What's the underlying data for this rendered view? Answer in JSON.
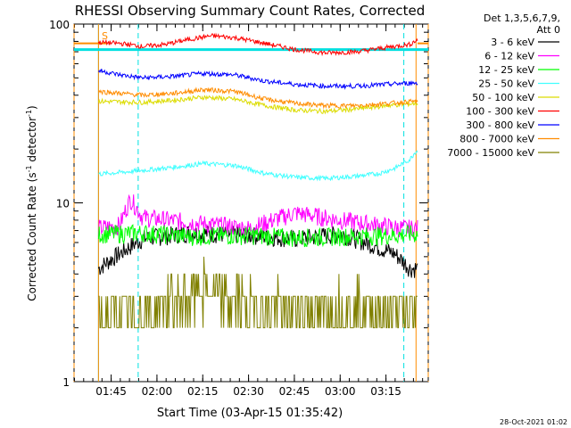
{
  "chart_data": {
    "type": "line",
    "title": "RHESSI Observing Summary Count Rates, Corrected",
    "xlabel": "Start Time (03-Apr-15 01:35:42)",
    "ylabel": "Corrected Count Rate (s",
    "ylabel_sup1": "-1",
    "ylabel_mid": " detector",
    "ylabel_sup2": "-1",
    "ylabel_end": ")",
    "yscale": "log",
    "ylim": [
      1,
      100
    ],
    "ytick_labels": [
      "1",
      "10",
      "100"
    ],
    "xlim_minutes": [
      -15,
      217
    ],
    "xtick_labels": [
      "01:45",
      "02:00",
      "02:15",
      "02:30",
      "02:45",
      "03:00",
      "03:15"
    ],
    "legend_header": [
      "Det 1,3,5,6,7,9,",
      "Att 0"
    ],
    "legend_position": "right",
    "saa_marker": "S",
    "footer_date": "28-Oct-2021 01:02",
    "data_window_minutes": [
      1,
      210
    ],
    "markers": [
      {
        "color": "#ff8c00",
        "x": -15,
        "style": "dashed"
      },
      {
        "color": "#00e0e0",
        "x": 27,
        "style": "dashed"
      },
      {
        "color": "#00e0e0",
        "x": 201,
        "style": "dashed"
      },
      {
        "color": "#ff8c00",
        "x": 209,
        "style": "solid"
      },
      {
        "color": "#00e0e0",
        "x": 1,
        "style": "solid"
      },
      {
        "color": "#ff8c00",
        "x": 1,
        "style": "solid"
      },
      {
        "color": "#ff8c00",
        "x": 217,
        "style": "dashed"
      }
    ],
    "series": [
      {
        "name": "3 - 6 keV",
        "color": "#000000",
        "x": [
          1,
          15,
          30,
          60,
          100,
          130,
          160,
          195,
          205
        ],
        "values": [
          4.3,
          5.2,
          6.3,
          6.8,
          6.6,
          6.3,
          6.7,
          5.2,
          4.3
        ]
      },
      {
        "name": "6 - 12 keV",
        "color": "#ff00ff",
        "x": [
          1,
          15,
          22,
          30,
          60,
          100,
          130,
          160,
          195,
          205
        ],
        "values": [
          7.2,
          7.5,
          10.5,
          8.3,
          7.8,
          7.2,
          8.8,
          8.0,
          7.3,
          7.2
        ]
      },
      {
        "name": "12 - 25 keV",
        "color": "#00ff00",
        "x": [
          1,
          30,
          60,
          100,
          130,
          160,
          195,
          205
        ],
        "values": [
          6.7,
          6.8,
          6.5,
          6.6,
          6.4,
          6.5,
          6.6,
          6.7
        ]
      },
      {
        "name": "25 - 50 keV",
        "color": "#40ffff",
        "x": [
          1,
          15,
          30,
          50,
          70,
          90,
          110,
          130,
          150,
          170,
          185,
          195,
          205,
          209
        ],
        "values": [
          14.5,
          14.8,
          15.2,
          15.8,
          16.6,
          16.2,
          14.6,
          13.9,
          13.7,
          14.1,
          14.6,
          15.6,
          17.5,
          19.5
        ]
      },
      {
        "name": "50 - 100 keV",
        "color": "#dcdc00",
        "x": [
          1,
          30,
          50,
          70,
          90,
          110,
          130,
          150,
          170,
          190,
          209
        ],
        "values": [
          37,
          36.5,
          37.5,
          39,
          38,
          35,
          33,
          32.5,
          33.5,
          35,
          36
        ]
      },
      {
        "name": "100 - 300 keV",
        "color": "#ff0000",
        "x": [
          1,
          15,
          30,
          45,
          60,
          75,
          90,
          110,
          130,
          150,
          170,
          190,
          205,
          209
        ],
        "values": [
          79,
          78,
          75,
          77,
          82,
          86,
          84,
          78,
          72,
          69,
          70,
          74,
          77,
          81
        ]
      },
      {
        "name": "300 - 800 keV",
        "color": "#0000ff",
        "x": [
          1,
          15,
          30,
          50,
          70,
          90,
          110,
          130,
          150,
          170,
          190,
          209
        ],
        "values": [
          55,
          52,
          50,
          51,
          53,
          52,
          48,
          46,
          45,
          45,
          46,
          47
        ]
      },
      {
        "name": "800 - 7000 keV",
        "color": "#ff8c00",
        "x": [
          1,
          15,
          30,
          50,
          70,
          90,
          110,
          130,
          150,
          170,
          190,
          209
        ],
        "values": [
          42,
          41,
          40,
          41,
          43,
          42,
          38,
          36,
          35,
          35,
          36,
          37
        ]
      },
      {
        "name": "7000 - 15000 keV",
        "color": "#808000",
        "x": [
          1,
          30,
          45,
          60,
          70,
          80,
          100,
          120,
          140,
          160,
          180,
          200,
          209
        ],
        "values": [
          2.3,
          2.4,
          2.7,
          2.9,
          3.4,
          3.0,
          2.7,
          2.6,
          2.5,
          2.7,
          2.6,
          2.4,
          2.4
        ]
      }
    ]
  }
}
